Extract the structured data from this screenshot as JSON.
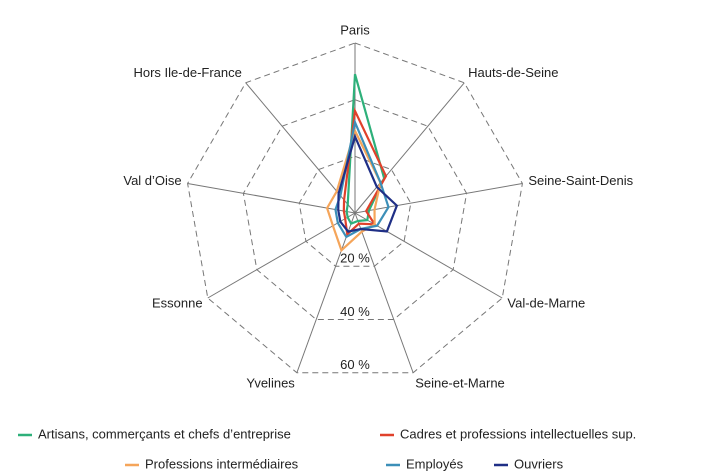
{
  "chart_data": {
    "type": "radar",
    "categories": [
      "Paris",
      "Hauts-de-Seine",
      "Seine-Saint-Denis",
      "Val-de-Marne",
      "Seine-et-Marne",
      "Yvelines",
      "Essonne",
      "Val d’Oise",
      "Hors Ile-de-France"
    ],
    "rlim": [
      0,
      60
    ],
    "rticks": [
      {
        "value": 20,
        "label": "20 %"
      },
      {
        "value": 40,
        "label": "40 %"
      },
      {
        "value": 60,
        "label": "60 %"
      }
    ],
    "grid": true,
    "series": [
      {
        "name": "Artisans, commerçants et chefs d’entreprise",
        "color": "#2eb07a",
        "values": [
          49,
          16,
          5,
          5,
          3,
          4,
          3,
          3,
          4
        ]
      },
      {
        "name": "Cadres et professions intellectuelles sup.",
        "color": "#e0412b",
        "values": [
          36,
          17,
          4,
          8,
          4,
          8,
          4,
          4,
          6
        ]
      },
      {
        "name": "Professions intermédiaires",
        "color": "#f5a55a",
        "values": [
          29,
          14,
          7,
          8,
          7,
          14,
          9,
          10,
          10
        ]
      },
      {
        "name": "Employés",
        "color": "#3c8fb8",
        "values": [
          32,
          14,
          12,
          9,
          6,
          9,
          7,
          7,
          8
        ]
      },
      {
        "name": "Ouvriers",
        "color": "#1f2f86",
        "values": [
          27,
          12,
          15,
          13,
          6,
          7,
          6,
          6,
          9
        ]
      }
    ]
  }
}
